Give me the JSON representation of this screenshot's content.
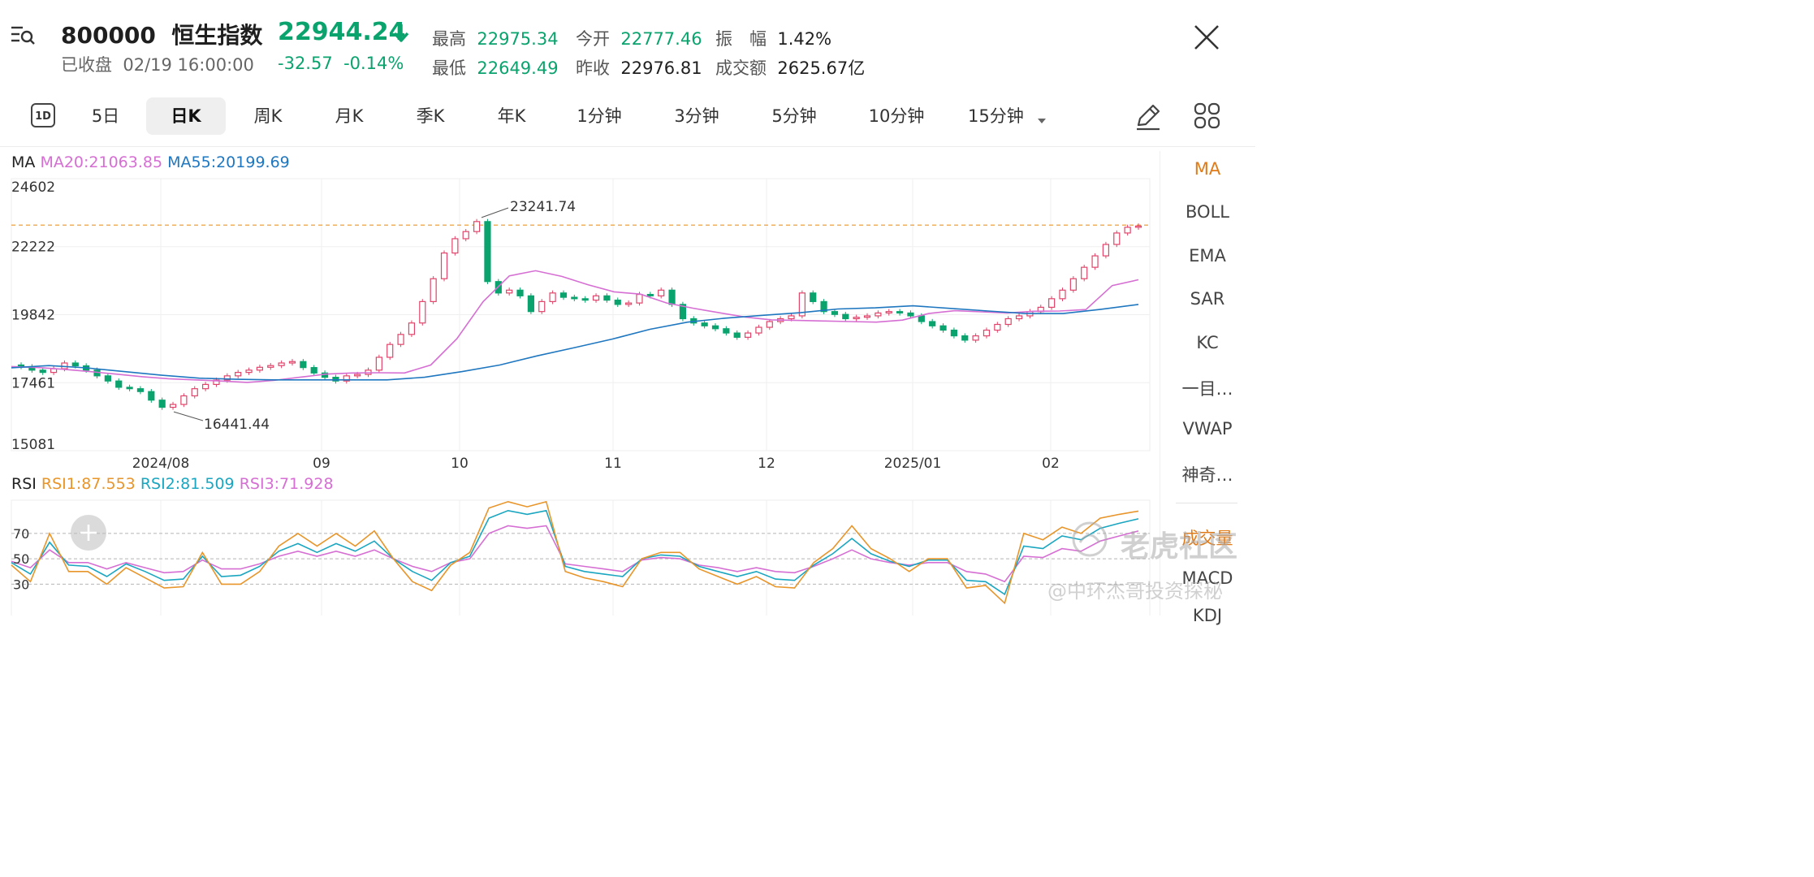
{
  "header": {
    "code": "800000",
    "name": "恒生指数",
    "price": "22944.24",
    "status": "已收盘",
    "datetime": "02/19 16:00:00",
    "change": "-32.57",
    "change_pct": "-0.14%",
    "stats": [
      {
        "label": "最高",
        "value": "22975.34",
        "tone": "green"
      },
      {
        "label": "今开",
        "value": "22777.46",
        "tone": "green"
      },
      {
        "label": "振　幅",
        "value": "1.42%",
        "tone": "dark"
      },
      {
        "label": "最低",
        "value": "22649.49",
        "tone": "green"
      },
      {
        "label": "昨收",
        "value": "22976.81",
        "tone": "dark"
      },
      {
        "label": "成交额",
        "value": "2625.67亿",
        "tone": "dark"
      }
    ]
  },
  "tabs": {
    "one_day": "1D",
    "items": [
      "5日",
      "日K",
      "周K",
      "月K",
      "季K",
      "年K",
      "1分钟",
      "3分钟",
      "5分钟",
      "10分钟",
      "15分钟"
    ],
    "active": "日K"
  },
  "main_legend": {
    "name": "MA",
    "ma20": "MA20:21063.85",
    "ma55": "MA55:20199.69"
  },
  "rsi_legend": {
    "name": "RSI",
    "rsi1": "RSI1:87.553",
    "rsi2": "RSI2:81.509",
    "rsi3": "RSI3:71.928"
  },
  "indicators": [
    "MA",
    "BOLL",
    "EMA",
    "SAR",
    "KC",
    "一目…",
    "VWAP",
    "神奇…",
    "成交量",
    "MACD",
    "KDJ"
  ],
  "active_indicator": "MA",
  "watermarks": {
    "brand": "老虎社区",
    "author": "@中环杰哥投资探秘"
  },
  "colors": {
    "up": "#e0446a",
    "down": "#0aa36e",
    "ma20": "#d66fd3",
    "ma55": "#1f77c0",
    "rsi1": "#e8952a",
    "rsi2": "#1aa6c0",
    "rsi3": "#d66fd3",
    "ref_line": "#e8952a"
  },
  "chart_data": [
    {
      "type": "candlestick",
      "title": "",
      "y_ticks": [
        24602,
        22222,
        19842,
        17461,
        15081
      ],
      "x_ticks": [
        "2024/08",
        "09",
        "10",
        "11",
        "12",
        "2025/01",
        "02"
      ],
      "ylim": [
        15081,
        24602
      ],
      "reference_line": 22976.81,
      "annotations": [
        {
          "label": "23241.74",
          "value": 23241.74
        },
        {
          "label": "16441.44",
          "value": 16441.44
        }
      ],
      "series": [
        {
          "name": "MA20",
          "values": [
            18024,
            17990,
            17930,
            17850,
            17760,
            17670,
            17600,
            17560,
            17520,
            17470,
            17540,
            17650,
            17760,
            17800,
            17810,
            17800,
            18080,
            19000,
            20300,
            21200,
            21380,
            21180,
            20890,
            20640,
            20560,
            20250,
            20070,
            19910,
            19760,
            19660,
            19640,
            19620,
            19600,
            19580,
            19650,
            19880,
            19980,
            19940,
            19900,
            19960,
            19970,
            20020,
            20860,
            21063.85
          ]
        },
        {
          "name": "MA55",
          "values": [
            17984,
            18060,
            17980,
            17850,
            17720,
            17620,
            17580,
            17560,
            17560,
            17560,
            17560,
            17650,
            17850,
            18080,
            18400,
            18690,
            18990,
            19330,
            19580,
            19720,
            19820,
            19910,
            20040,
            20080,
            20150,
            20060,
            19970,
            19880,
            19880,
            20030,
            20199.69
          ]
        }
      ]
    },
    {
      "type": "line",
      "title": "",
      "y_ticks": [
        70,
        50,
        30
      ],
      "series": [
        {
          "name": "RSI1",
          "values": [
            45,
            32,
            70,
            40,
            40,
            30,
            43,
            35,
            27,
            28,
            55,
            30,
            30,
            40,
            60,
            70,
            60,
            70,
            60,
            72,
            50,
            32,
            25,
            45,
            55,
            90,
            95,
            91,
            95,
            40,
            35,
            32,
            28,
            50,
            55,
            55,
            42,
            36,
            30,
            36,
            28,
            27,
            47,
            58,
            76,
            58,
            50,
            40,
            50,
            50,
            27,
            29,
            15,
            70,
            65,
            75,
            70,
            82,
            85,
            87.553
          ]
        },
        {
          "name": "RSI2",
          "values": [
            47,
            38,
            63,
            45,
            44,
            36,
            46,
            40,
            33,
            34,
            52,
            36,
            37,
            44,
            56,
            62,
            55,
            62,
            56,
            64,
            50,
            40,
            33,
            47,
            52,
            82,
            88,
            85,
            88,
            44,
            40,
            38,
            36,
            50,
            53,
            52,
            44,
            40,
            36,
            40,
            34,
            33,
            45,
            54,
            66,
            54,
            48,
            44,
            49,
            49,
            33,
            32,
            22,
            60,
            58,
            68,
            65,
            74,
            78,
            81.509
          ]
        },
        {
          "name": "RSI3",
          "values": [
            48,
            43,
            57,
            47,
            47,
            42,
            47,
            43,
            39,
            40,
            49,
            42,
            42,
            46,
            52,
            56,
            52,
            56,
            52,
            57,
            50,
            44,
            40,
            47,
            50,
            70,
            76,
            74,
            76,
            46,
            44,
            42,
            40,
            49,
            51,
            50,
            45,
            43,
            40,
            43,
            40,
            39,
            44,
            50,
            57,
            50,
            47,
            45,
            47,
            47,
            40,
            38,
            32,
            52,
            51,
            58,
            56,
            64,
            68,
            71.928
          ]
        }
      ]
    }
  ]
}
